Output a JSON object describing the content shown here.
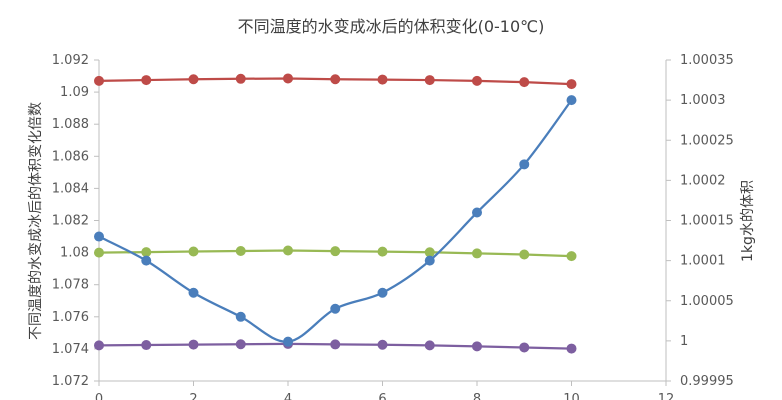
{
  "chart_data": {
    "type": "line",
    "title": "不同温度的水变成冰后的体积变化(0-10℃)",
    "xlabel": "",
    "ylabel": "不同温度的水变成冰后的体积变化倍数",
    "y2label": "1kg水的体积",
    "x": [
      0,
      1,
      2,
      3,
      4,
      5,
      6,
      7,
      8,
      9,
      10
    ],
    "xlim": [
      0,
      12
    ],
    "ylim": [
      1.072,
      1.092
    ],
    "y2lim": [
      0.99995,
      1.00035
    ],
    "x_ticks": [
      "0",
      "2",
      "4",
      "6",
      "8",
      "10",
      "12"
    ],
    "y_ticks": [
      "1.072",
      "1.074",
      "1.076",
      "1.078",
      "1.08",
      "1.082",
      "1.084",
      "1.086",
      "1.088",
      "1.09",
      "1.092"
    ],
    "y2_ticks": [
      "0.99995",
      "1",
      "1.00005",
      "1.0001",
      "1.00015",
      "1.0002",
      "1.00025",
      "1.0003",
      "1.00035"
    ],
    "grid": false,
    "series": [
      {
        "axis": "right",
        "color": "#4A7EBB",
        "smooth": true,
        "values": [
          1.00013,
          1.0001,
          1.00006,
          1.00003,
          0.999999,
          1.00004,
          1.00006,
          1.0001,
          1.00016,
          1.00022,
          1.0003
        ]
      },
      {
        "axis": "left",
        "color": "#BE4B48",
        "smooth": false,
        "values": [
          1.0907,
          1.09075,
          1.0908,
          1.09083,
          1.09085,
          1.0908,
          1.09078,
          1.09075,
          1.0907,
          1.09062,
          1.0905
        ]
      },
      {
        "axis": "left",
        "color": "#98B954",
        "smooth": false,
        "values": [
          1.08,
          1.08003,
          1.08007,
          1.0801,
          1.08013,
          1.08009,
          1.08006,
          1.08002,
          1.07995,
          1.07988,
          1.07978
        ]
      },
      {
        "axis": "left",
        "color": "#7D5FA0",
        "smooth": false,
        "values": [
          1.07422,
          1.07424,
          1.07427,
          1.07429,
          1.07431,
          1.07428,
          1.07426,
          1.07422,
          1.07416,
          1.07409,
          1.07402
        ]
      }
    ]
  }
}
